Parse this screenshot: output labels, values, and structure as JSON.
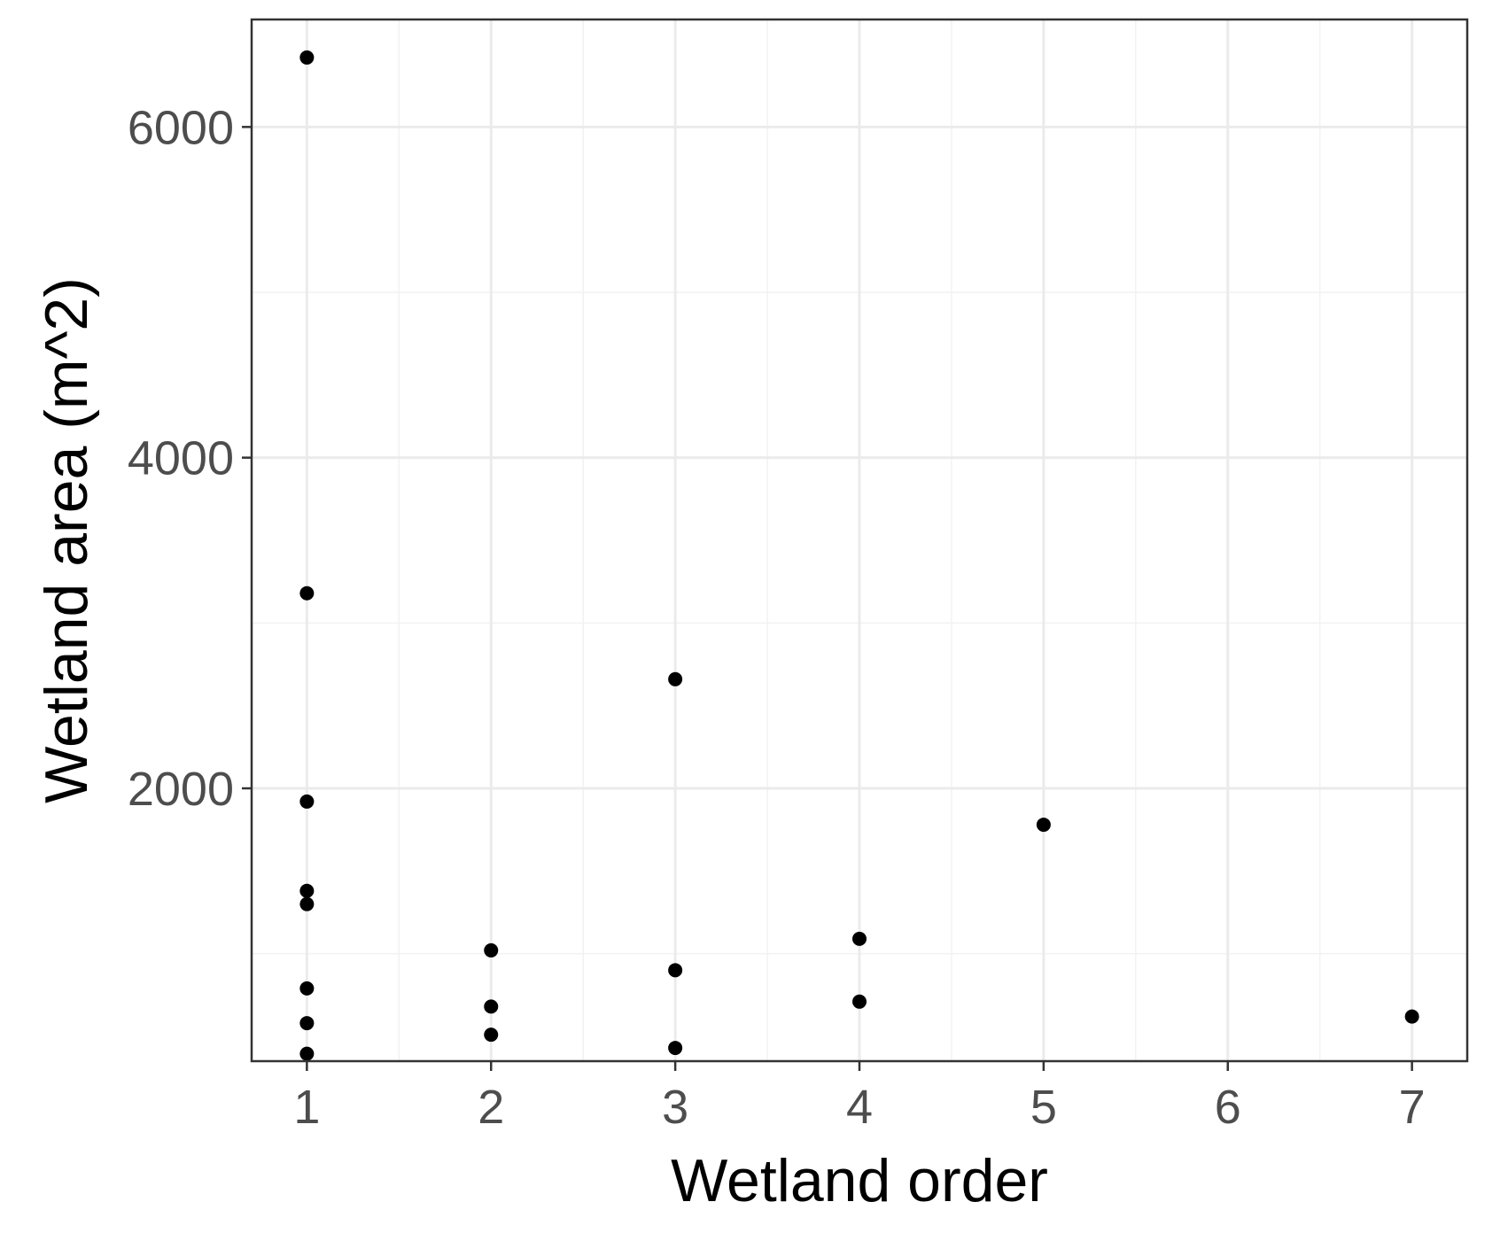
{
  "chart_data": {
    "type": "scatter",
    "xlabel": "Wetland order",
    "ylabel": "Wetland area (m^2)",
    "xlim": [
      0.7,
      7.3
    ],
    "ylim": [
      350,
      6650
    ],
    "x_ticks": [
      1,
      2,
      3,
      4,
      5,
      6,
      7
    ],
    "y_ticks": [
      2000,
      4000,
      6000
    ],
    "grid": true,
    "point_color": "#000000",
    "points": [
      {
        "x": 1,
        "y": 6420
      },
      {
        "x": 1,
        "y": 3180
      },
      {
        "x": 1,
        "y": 1920
      },
      {
        "x": 1,
        "y": 1380
      },
      {
        "x": 1,
        "y": 1300
      },
      {
        "x": 1,
        "y": 790
      },
      {
        "x": 1,
        "y": 580
      },
      {
        "x": 1,
        "y": 395
      },
      {
        "x": 2,
        "y": 1020
      },
      {
        "x": 2,
        "y": 680
      },
      {
        "x": 2,
        "y": 510
      },
      {
        "x": 3,
        "y": 2660
      },
      {
        "x": 3,
        "y": 900
      },
      {
        "x": 3,
        "y": 430
      },
      {
        "x": 4,
        "y": 1090
      },
      {
        "x": 4,
        "y": 710
      },
      {
        "x": 5,
        "y": 1780
      },
      {
        "x": 7,
        "y": 620
      }
    ]
  }
}
